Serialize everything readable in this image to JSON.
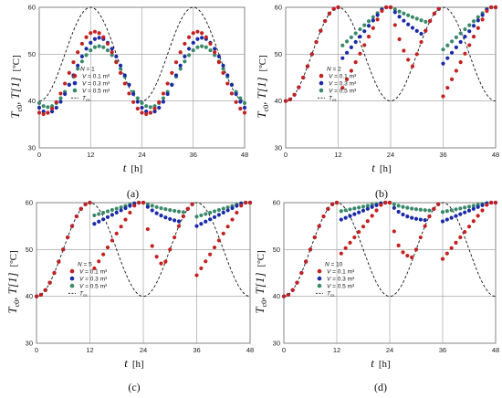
{
  "colors": {
    "V01": "#c42020",
    "V03": "#1a2aa8",
    "V05": "#3a8a6a",
    "tcs": "#111111"
  },
  "chart_data": [
    {
      "type": "scatter",
      "caption": "(a)",
      "xlabel_t": "t",
      "xlabel_unit": "[h]",
      "ylabel_main": "T",
      "ylabel_sub": "c0",
      "ylabel_rest": ", T[1]",
      "ylabel_unit": "[ºC]",
      "xlim": [
        0,
        48
      ],
      "ylim": [
        30,
        60
      ],
      "xticks": [
        0,
        12,
        24,
        36,
        48
      ],
      "yticks": [
        30,
        40,
        50,
        60
      ],
      "legend_title_var": "N",
      "legend_title_val": " = 1",
      "legend_position": "bottom-left",
      "legend": [
        {
          "key": "V01",
          "var": "V",
          "text": " = 0.1 m³"
        },
        {
          "key": "V03",
          "var": "V",
          "text": " = 0.3 m³"
        },
        {
          "key": "V05",
          "var": "V",
          "text": " = 0.5 m³"
        },
        {
          "key": "tcs",
          "var": "T",
          "sub": "cs",
          "text": ""
        }
      ],
      "series": [
        {
          "key": "V01",
          "model": {
            "type": "sine",
            "mean": 46.0,
            "amp": 8.8,
            "peak": 13
          }
        },
        {
          "key": "V03",
          "model": {
            "type": "sine",
            "mean": 45.5,
            "amp": 8.0,
            "peak": 14
          }
        },
        {
          "key": "V05",
          "model": {
            "type": "sine",
            "mean": 45.2,
            "amp": 6.5,
            "peak": 14
          }
        },
        {
          "key": "tcs",
          "model": {
            "type": "sine",
            "mean": 50,
            "amp": 10,
            "peak": 12
          }
        }
      ]
    },
    {
      "type": "scatter",
      "caption": "(b)",
      "xlabel_t": "t",
      "xlabel_unit": "[h]",
      "ylabel_main": "T",
      "ylabel_sub": "c0",
      "ylabel_rest": ", T[1]",
      "ylabel_unit": "[ºC]",
      "xlim": [
        0,
        48
      ],
      "ylim": [
        30,
        60
      ],
      "xticks": [
        0,
        12,
        24,
        36,
        48
      ],
      "yticks": [
        30,
        40,
        50,
        60
      ],
      "legend_title_var": "N",
      "legend_title_val": " = 2",
      "legend_position": "bottom-right",
      "legend": [
        {
          "key": "V01",
          "var": "V",
          "text": " = 0.1 m³"
        },
        {
          "key": "V03",
          "var": "V",
          "text": " = 0.3 m³"
        },
        {
          "key": "V05",
          "var": "V",
          "text": " = 0.5 m³"
        },
        {
          "key": "tcs",
          "var": "T",
          "sub": "cs",
          "text": ""
        }
      ],
      "series": [
        {
          "key": "V01",
          "model": {
            "type": "decay",
            "tau": 4.5,
            "tmin": 41
          }
        },
        {
          "key": "V03",
          "model": {
            "type": "decay",
            "tau": 11,
            "tmin": 48
          }
        },
        {
          "key": "V05",
          "model": {
            "type": "decay",
            "tau": 19,
            "tmin": 51
          }
        },
        {
          "key": "tcs",
          "model": {
            "type": "sine",
            "mean": 50,
            "amp": 10,
            "peak": 12
          }
        }
      ]
    },
    {
      "type": "scatter",
      "caption": "(c)",
      "xlabel_t": "t",
      "xlabel_unit": "[h]",
      "ylabel_main": "T",
      "ylabel_sub": "c0",
      "ylabel_rest": ", T[1]",
      "ylabel_unit": "[ºC]",
      "xlim": [
        0,
        48
      ],
      "ylim": [
        30,
        60
      ],
      "xticks": [
        0,
        12,
        24,
        36,
        48
      ],
      "yticks": [
        30,
        40,
        50,
        60
      ],
      "legend_title_var": "N",
      "legend_title_val": " = 5",
      "legend_position": "bottom-right",
      "legend": [
        {
          "key": "V01",
          "var": "V",
          "text": " = 0.1 m³"
        },
        {
          "key": "V03",
          "var": "V",
          "text": " = 0.3 m³"
        },
        {
          "key": "V05",
          "var": "V",
          "text": " = 0.5 m³"
        },
        {
          "key": "tcs",
          "var": "T",
          "sub": "cs",
          "text": ""
        }
      ],
      "series": [
        {
          "key": "V01",
          "model": {
            "type": "decay",
            "tau": 2.2,
            "tmin": 44.5
          }
        },
        {
          "key": "V03",
          "model": {
            "type": "decay",
            "tau": 5,
            "tmin": 55
          }
        },
        {
          "key": "V05",
          "model": {
            "type": "decay",
            "tau": 8,
            "tmin": 57
          }
        },
        {
          "key": "tcs",
          "model": {
            "type": "sine",
            "mean": 50,
            "amp": 10,
            "peak": 12
          }
        }
      ]
    },
    {
      "type": "scatter",
      "caption": "(d)",
      "xlabel_t": "t",
      "xlabel_unit": "[h]",
      "ylabel_main": "T",
      "ylabel_sub": "c0",
      "ylabel_rest": ", T[1]",
      "ylabel_unit": "[ºC]",
      "xlim": [
        0,
        48
      ],
      "ylim": [
        30,
        60
      ],
      "xticks": [
        0,
        12,
        24,
        36,
        48
      ],
      "yticks": [
        30,
        40,
        50,
        60
      ],
      "legend_title_var": "N",
      "legend_title_val": " = 10",
      "legend_position": "bottom-right",
      "legend": [
        {
          "key": "V01",
          "var": "V",
          "text": " = 0.1 m³"
        },
        {
          "key": "V03",
          "var": "V",
          "text": " = 0.3 m³"
        },
        {
          "key": "V05",
          "var": "V",
          "text": " = 0.5 m³"
        },
        {
          "key": "tcs",
          "var": "T",
          "sub": "cs",
          "text": ""
        }
      ],
      "series": [
        {
          "key": "V01",
          "model": {
            "type": "decay",
            "tau": 1.4,
            "tmin": 48
          }
        },
        {
          "key": "V03",
          "model": {
            "type": "decay",
            "tau": 3,
            "tmin": 56
          }
        },
        {
          "key": "V05",
          "model": {
            "type": "decay",
            "tau": 5,
            "tmin": 58
          }
        },
        {
          "key": "tcs",
          "model": {
            "type": "sine",
            "mean": 50,
            "amp": 10,
            "peak": 12
          }
        }
      ]
    }
  ]
}
